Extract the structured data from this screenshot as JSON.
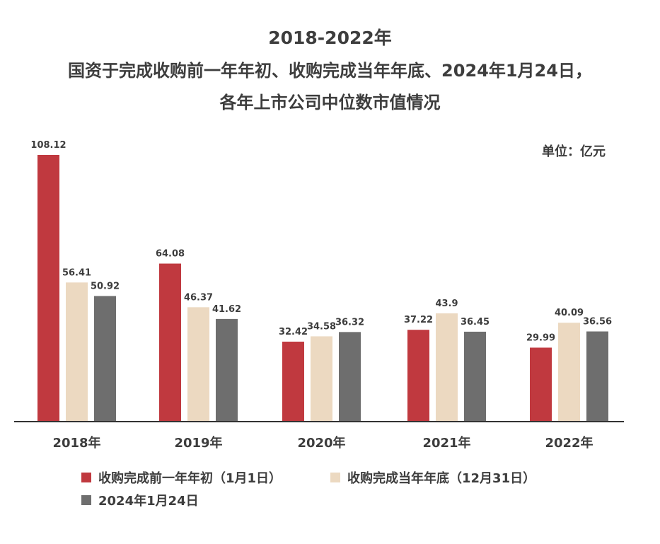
{
  "header": {
    "title_line1": "2018-2022年",
    "title_line2": "国资于完成收购前一年年初、收购完成当年年底、2024年1月24日，",
    "title_line3": "各年上市公司中位数市值情况",
    "unit": "单位：亿元"
  },
  "colors": {
    "series1": "#c0393f",
    "series2": "#ecd9c1",
    "series3": "#6e6e6e",
    "axis": "#333333"
  },
  "chart_data": {
    "type": "bar",
    "title": "2018-2022年 国资于完成收购前一年年初、收购完成当年年底、2024年1月24日，各年上市公司中位数市值情况",
    "ylabel": "单位：亿元",
    "xlabel": "",
    "ylim": [
      0,
      110
    ],
    "grid": false,
    "legend": "bottom-left",
    "categories": [
      "2018年",
      "2019年",
      "2020年",
      "2021年",
      "2022年"
    ],
    "series": [
      {
        "name": "收购完成前一年年初（1月1日）",
        "values": [
          108.12,
          64.08,
          32.42,
          37.22,
          29.99
        ]
      },
      {
        "name": "收购完成当年年底（12月31日）",
        "values": [
          56.41,
          46.37,
          34.58,
          43.9,
          40.09
        ]
      },
      {
        "name": "2024年1月24日",
        "values": [
          50.92,
          41.62,
          36.32,
          36.45,
          36.56
        ]
      }
    ],
    "labels": [
      [
        "108.12",
        "56.41",
        "50.92"
      ],
      [
        "64.08",
        "46.37",
        "41.62"
      ],
      [
        "32.42",
        "34.58",
        "36.32"
      ],
      [
        "37.22",
        "43.9",
        "36.45"
      ],
      [
        "29.99",
        "40.09",
        "36.56"
      ]
    ]
  }
}
